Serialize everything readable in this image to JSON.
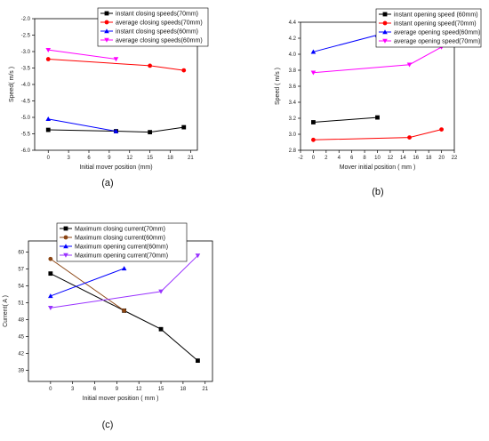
{
  "chart_data": [
    {
      "id": "a",
      "type": "line",
      "panel_label": "(a)",
      "xlabel": "Initial mover position (mm)",
      "ylabel": "Speed( m/s )",
      "xlim": [
        -2,
        22
      ],
      "ylim": [
        -6.0,
        -2.0
      ],
      "xticks": [
        0,
        3,
        6,
        9,
        12,
        15,
        18,
        21
      ],
      "yticks": [
        -6.0,
        -5.5,
        -5.0,
        -4.5,
        -4.0,
        -3.5,
        -3.0,
        -2.5,
        -2.0
      ],
      "tick_decimals": {
        "x": 0,
        "y": 1
      },
      "legend_position": "top-right",
      "series": [
        {
          "name": "instant closing speeds(70mm)",
          "color": "#000000",
          "marker": "square",
          "x": [
            0,
            10,
            15,
            20
          ],
          "y": [
            -5.38,
            -5.42,
            -5.45,
            -5.3
          ]
        },
        {
          "name": "average closing speeds(70mm)",
          "color": "#ff0000",
          "marker": "circle",
          "x": [
            0,
            15,
            20
          ],
          "y": [
            -3.23,
            -3.43,
            -3.57
          ]
        },
        {
          "name": "instant closing speeds(60mm)",
          "color": "#0000ff",
          "marker": "triangle-up",
          "x": [
            0,
            10
          ],
          "y": [
            -5.05,
            -5.42
          ]
        },
        {
          "name": "average closing speeds(60mm)",
          "color": "#ff00ff",
          "marker": "triangle-down",
          "x": [
            0,
            10
          ],
          "y": [
            -2.95,
            -3.23
          ]
        }
      ]
    },
    {
      "id": "b",
      "type": "line",
      "panel_label": "(b)",
      "xlabel": "Mover initial position ( mm )",
      "ylabel": "Speed ( m/s )",
      "xlim": [
        -2,
        22
      ],
      "ylim": [
        2.8,
        4.4
      ],
      "xticks": [
        -2,
        0,
        2,
        4,
        6,
        8,
        10,
        12,
        14,
        16,
        18,
        20,
        22
      ],
      "yticks": [
        2.8,
        3.0,
        3.2,
        3.4,
        3.6,
        3.8,
        4.0,
        4.2,
        4.4
      ],
      "tick_decimals": {
        "x": 0,
        "y": 1
      },
      "legend_position": "top-right",
      "series": [
        {
          "name": "instant opening speed (60mm)",
          "color": "#000000",
          "marker": "square",
          "x": [
            0,
            10
          ],
          "y": [
            3.15,
            3.21
          ]
        },
        {
          "name": "instant opening speed(70mm)",
          "color": "#ff0000",
          "marker": "circle",
          "x": [
            0,
            15,
            20
          ],
          "y": [
            2.93,
            2.96,
            3.06
          ]
        },
        {
          "name": "average opening speed(60mm)",
          "color": "#0000ff",
          "marker": "triangle-up",
          "x": [
            0,
            10
          ],
          "y": [
            4.03,
            4.24
          ]
        },
        {
          "name": "average opening speed(70mm)",
          "color": "#ff00ff",
          "marker": "triangle-down",
          "x": [
            0,
            15,
            20
          ],
          "y": [
            3.77,
            3.87,
            4.09
          ]
        }
      ]
    },
    {
      "id": "c",
      "type": "line",
      "panel_label": "(c)",
      "xlabel": "Initial mover position ( mm )",
      "ylabel": "Current( A )",
      "xlim": [
        -3,
        22
      ],
      "ylim": [
        37,
        62
      ],
      "xticks": [
        0,
        3,
        6,
        9,
        12,
        15,
        18,
        21
      ],
      "yticks": [
        39,
        42,
        45,
        48,
        51,
        54,
        57,
        60
      ],
      "tick_decimals": {
        "x": 0,
        "y": 0
      },
      "legend_position": "top-left",
      "series": [
        {
          "name": "Maximum closing current(70mm)",
          "color": "#000000",
          "marker": "square",
          "x": [
            0,
            10,
            15,
            20
          ],
          "y": [
            56.2,
            49.6,
            46.3,
            40.7
          ]
        },
        {
          "name": "Maximum closing current(60mm)",
          "color": "#8b4513",
          "marker": "circle",
          "x": [
            0,
            10
          ],
          "y": [
            58.8,
            49.6
          ]
        },
        {
          "name": "Maximum opening current(60mm)",
          "color": "#0000ff",
          "marker": "triangle-up",
          "x": [
            0,
            10
          ],
          "y": [
            52.2,
            57.1
          ]
        },
        {
          "name": "Maximum opening current(70mm)",
          "color": "#9933ff",
          "marker": "triangle-down",
          "x": [
            0,
            15,
            20
          ],
          "y": [
            50.1,
            53.0,
            59.4
          ]
        }
      ]
    }
  ]
}
